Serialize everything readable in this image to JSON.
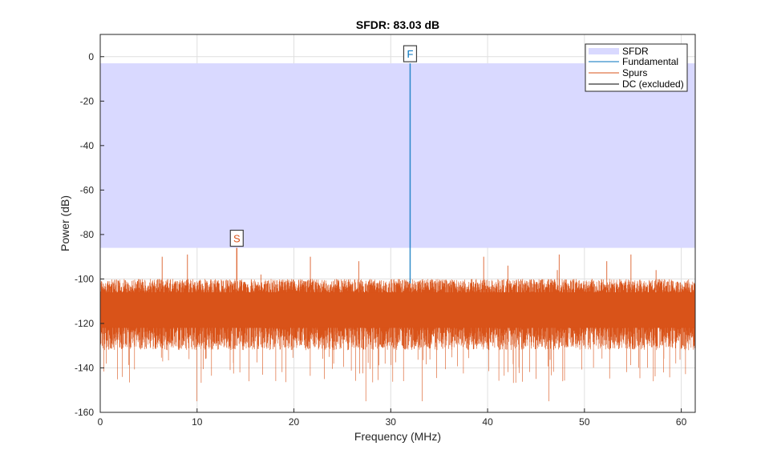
{
  "chart_data": {
    "type": "line",
    "title": "SFDR:  83.03 dB",
    "xlabel": "Frequency (MHz)",
    "ylabel": "Power (dB)",
    "xlim": [
      0,
      61.44
    ],
    "ylim": [
      -160,
      10
    ],
    "xticks": [
      0,
      10,
      20,
      30,
      40,
      50,
      60
    ],
    "yticks": [
      0,
      -20,
      -40,
      -60,
      -80,
      -100,
      -120,
      -140,
      -160
    ],
    "grid": true,
    "legend_placement": "top-right",
    "legend": [
      "SFDR",
      "Fundamental",
      "Spurs",
      "DC (excluded)"
    ],
    "sfdr_db": 83.03,
    "sfdr_band_db": [
      -86.0,
      -3.0
    ],
    "fundamental": {
      "freq_mhz": 32.0,
      "power_db": -3.0,
      "marker": "F"
    },
    "max_spur": {
      "freq_mhz": 14.1,
      "power_db": -86.0,
      "marker": "S"
    },
    "spurs": [
      {
        "freq_mhz": 6.4,
        "power_db": -90
      },
      {
        "freq_mhz": 9.0,
        "power_db": -89
      },
      {
        "freq_mhz": 16.6,
        "power_db": -98
      },
      {
        "freq_mhz": 21.7,
        "power_db": -90
      },
      {
        "freq_mhz": 26.7,
        "power_db": -92
      },
      {
        "freq_mhz": 39.6,
        "power_db": -90
      },
      {
        "freq_mhz": 42.1,
        "power_db": -94
      },
      {
        "freq_mhz": 47.2,
        "power_db": -96
      },
      {
        "freq_mhz": 47.4,
        "power_db": -89
      },
      {
        "freq_mhz": 52.3,
        "power_db": -92
      },
      {
        "freq_mhz": 54.8,
        "power_db": -89
      },
      {
        "freq_mhz": 57.4,
        "power_db": -96
      }
    ],
    "noise_floor_db": [
      -135,
      -100
    ],
    "colors": {
      "sfdr_band": "#d9d9ff",
      "fundamental": "#0072bd",
      "spurs": "#d95319",
      "dc": "#000000"
    }
  }
}
